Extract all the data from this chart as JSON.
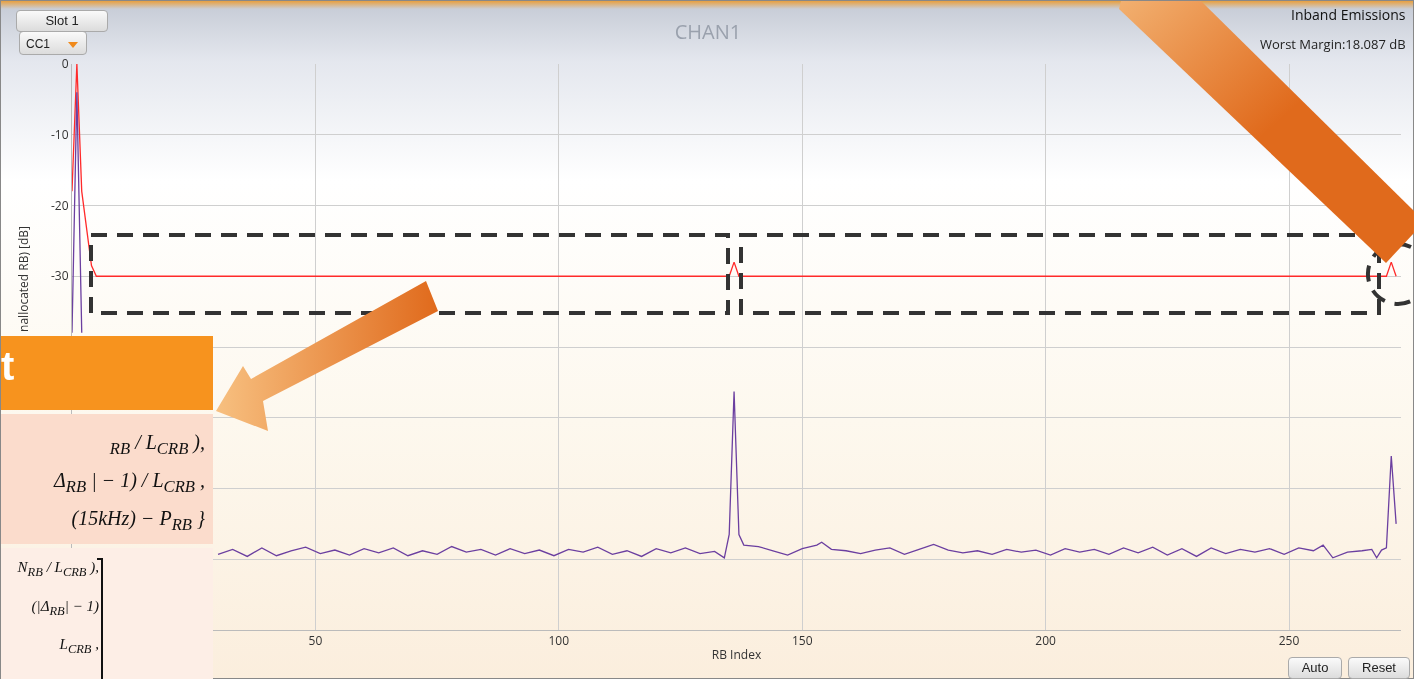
{
  "chart_data": {
    "type": "line",
    "title": "CHAN1",
    "subtitle": "Inband Emissions",
    "xlabel": "RB Index",
    "ylabel": "nallocated RB) [dB]",
    "annotations": [
      "Worst Margin:18.087 dB",
      "Slot 1",
      "CC1",
      "Auto",
      "Reset",
      "t",
      "$_{RB}$ / L$_{CRB}$ ),",
      "Δ$_{RB}$ | − 1) / L$_{CRB}$ ,",
      "(15kHz) − P$_{RB}$ }",
      "N$_{RB}$ / L$_{CRB}$ ),",
      "(|Δ$_{RB}$| − 1)",
      "L$_{CRB}$ ,"
    ],
    "xlim": [
      0,
      273
    ],
    "xticks": [
      50,
      100,
      150,
      200,
      250
    ],
    "ylim": [
      -80,
      0
    ],
    "yticks": [
      0,
      -10,
      -20,
      -30,
      {
        "value": -40,
        "label": null
      },
      {
        "value": -50,
        "label": null
      },
      {
        "value": -60,
        "label": null
      },
      {
        "value": -70,
        "label": null
      },
      {
        "value": -80,
        "label": null
      }
    ],
    "grid": true,
    "series": [
      {
        "color": "#ff2a2a",
        "x": [
          0,
          1,
          2,
          4,
          5,
          135,
          136,
          137,
          270,
          271,
          272
        ],
        "values": [
          -18,
          0,
          -18,
          -28.5,
          -30,
          -30,
          -28,
          -30,
          -30,
          -28,
          -30
        ]
      },
      {
        "color": "#6b3fa0",
        "x": [
          0,
          1,
          2,
          3,
          30,
          33,
          36,
          39,
          42,
          45,
          48,
          51,
          54,
          57,
          60,
          63,
          66,
          69,
          72,
          75,
          78,
          81,
          84,
          87,
          90,
          93,
          96,
          99,
          102,
          105,
          108,
          111,
          114,
          117,
          120,
          123,
          126,
          129,
          132,
          134,
          135,
          136,
          137,
          138,
          141,
          144,
          147,
          150,
          153,
          154,
          156,
          159,
          162,
          165,
          168,
          171,
          174,
          177,
          180,
          183,
          186,
          189,
          192,
          195,
          198,
          201,
          204,
          207,
          210,
          213,
          216,
          219,
          222,
          225,
          228,
          231,
          234,
          237,
          240,
          243,
          246,
          249,
          252,
          255,
          257,
          259,
          262,
          265,
          267,
          268,
          269,
          270,
          271,
          272
        ],
        "values": [
          -38,
          -4,
          -38,
          null,
          -69.3,
          -68.6,
          -69.6,
          -68.4,
          -69.5,
          -68.8,
          -68.3,
          -69.2,
          -68.7,
          -69.4,
          -68.5,
          -69.1,
          -68.4,
          -69.5,
          -68.8,
          -69.3,
          -68.2,
          -69,
          -68.6,
          -69.4,
          -68.5,
          -69.2,
          -68.7,
          -69.5,
          -68.6,
          -69,
          -68.3,
          -69.3,
          -68.8,
          -69.6,
          -68.5,
          -69.1,
          -68.4,
          -69.2,
          -68.9,
          -69.8,
          -66.5,
          -46.3,
          -66.5,
          -68,
          -68.2,
          -68.8,
          -69.4,
          -68.5,
          -68,
          -67.6,
          -68.6,
          -68.8,
          -69.2,
          -68.7,
          -68.4,
          -69.3,
          -68.6,
          -67.9,
          -68.7,
          -69.1,
          -68.8,
          -69.3,
          -68.6,
          -69,
          -68.7,
          -69.4,
          -68.5,
          -69,
          -68.6,
          -69.3,
          -68.4,
          -69.1,
          -68.3,
          -69.4,
          -68.5,
          -69.6,
          -68.4,
          -69.2,
          -68.6,
          -69,
          -68.5,
          -69.3,
          -68.4,
          -68.8,
          -68,
          -69.8,
          -69,
          -68.8,
          -68.6,
          -69.8,
          -68.7,
          -68.4,
          -55.4,
          -65
        ]
      }
    ]
  }
}
